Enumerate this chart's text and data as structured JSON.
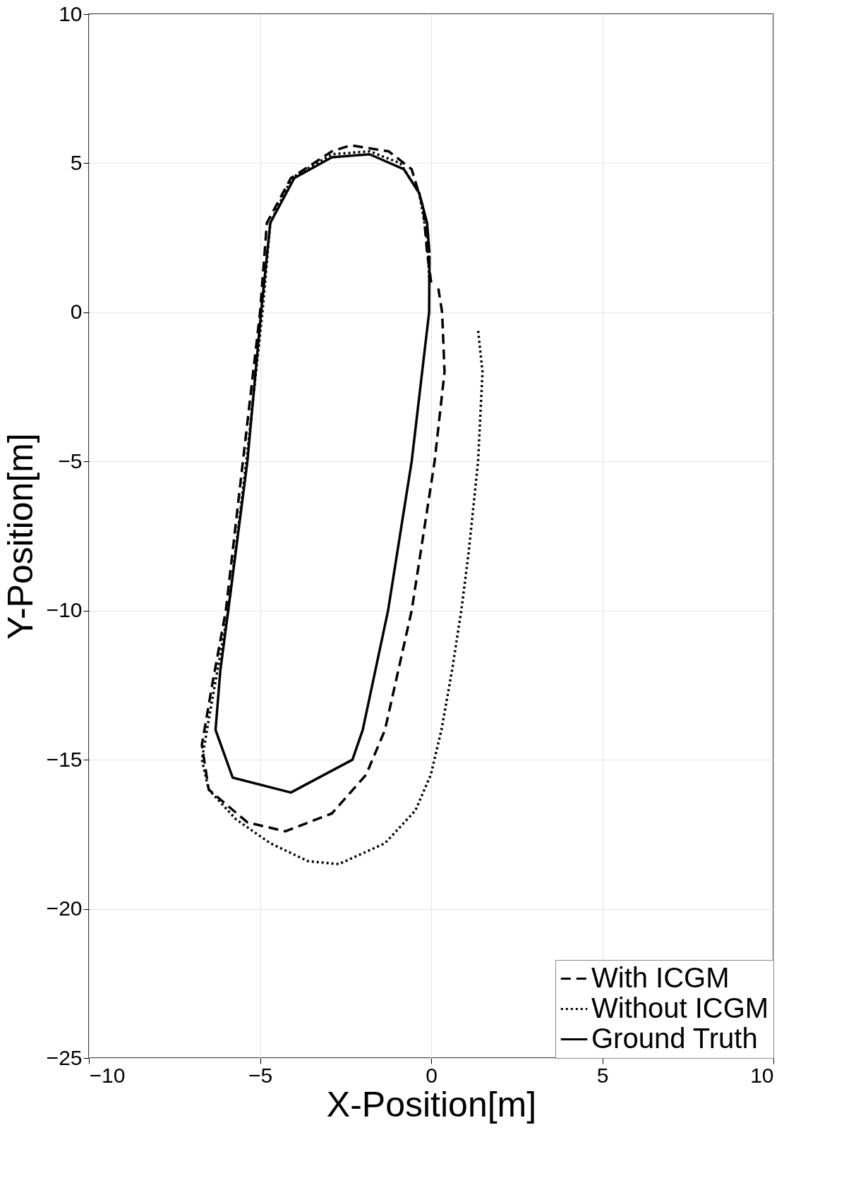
{
  "chart_data": {
    "type": "line",
    "xlabel": "X-Position[m]",
    "ylabel": "Y-Position[m]",
    "xlim": [
      -10,
      10
    ],
    "ylim": [
      -25,
      10
    ],
    "xticks": [
      -10,
      -5,
      0,
      5,
      10
    ],
    "yticks": [
      -25,
      -20,
      -15,
      -10,
      -5,
      0,
      5,
      10
    ],
    "grid": true,
    "legend": "bottom right",
    "marker": "none",
    "series": [
      {
        "name": "With ICGM",
        "color": "#000000",
        "line_style": "dashed",
        "x": [
          0.0,
          -0.12,
          -0.23,
          -0.57,
          -1.24,
          -2.35,
          -2.9,
          -4.1,
          -4.8,
          -5.0,
          -5.5,
          -6.0,
          -6.4,
          -6.7,
          -6.5,
          -5.37,
          -4.26,
          -2.9,
          -1.9,
          -1.35,
          -0.57,
          0.1,
          0.39,
          0.32,
          0.21
        ],
        "values": [
          1,
          2,
          3.5,
          4.8,
          5.4,
          5.6,
          5.4,
          4.5,
          3,
          0,
          -5,
          -10,
          -12.5,
          -14.5,
          -16,
          -17.1,
          -17.4,
          -16.8,
          -15.5,
          -14,
          -10,
          -5,
          -2,
          0,
          0.8
        ]
      },
      {
        "name": "Without ICGM",
        "color": "#000000",
        "line_style": "dotted",
        "x": [
          -0.05,
          -0.12,
          -0.35,
          -0.9,
          -1.8,
          -2.9,
          -4.08,
          -4.7,
          -4.93,
          -5.4,
          -5.93,
          -6.4,
          -6.7,
          -6.5,
          -5.7,
          -4.7,
          -3.6,
          -2.7,
          -1.35,
          -0.46,
          -0.01,
          0.3,
          0.61,
          0.88,
          1.1,
          1.37,
          1.5,
          1.37
        ],
        "values": [
          1,
          2.5,
          4,
          5,
          5.4,
          5.3,
          4.5,
          3,
          0,
          -5,
          -10,
          -13,
          -15,
          -16,
          -17,
          -17.8,
          -18.4,
          -18.5,
          -17.8,
          -16.7,
          -15.5,
          -14,
          -12,
          -10,
          -8,
          -5,
          -2,
          -0.6
        ]
      },
      {
        "name": "Ground Truth",
        "color": "#000000",
        "line_style": "solid",
        "x": [
          -0.05,
          -0.12,
          -0.35,
          -0.8,
          -1.8,
          -2.9,
          -4.0,
          -4.7,
          -4.97,
          -5.37,
          -5.93,
          -6.16,
          -6.3,
          -5.8,
          -4.1,
          -2.3,
          -2.0,
          -1.26,
          -0.57,
          -0.06,
          -0.05
        ],
        "values": [
          2,
          3,
          4,
          4.8,
          5.3,
          5.2,
          4.5,
          3,
          0,
          -5,
          -10,
          -12,
          -14,
          -15.6,
          -16.1,
          -15,
          -14,
          -10,
          -5,
          0,
          1.9
        ]
      }
    ]
  }
}
